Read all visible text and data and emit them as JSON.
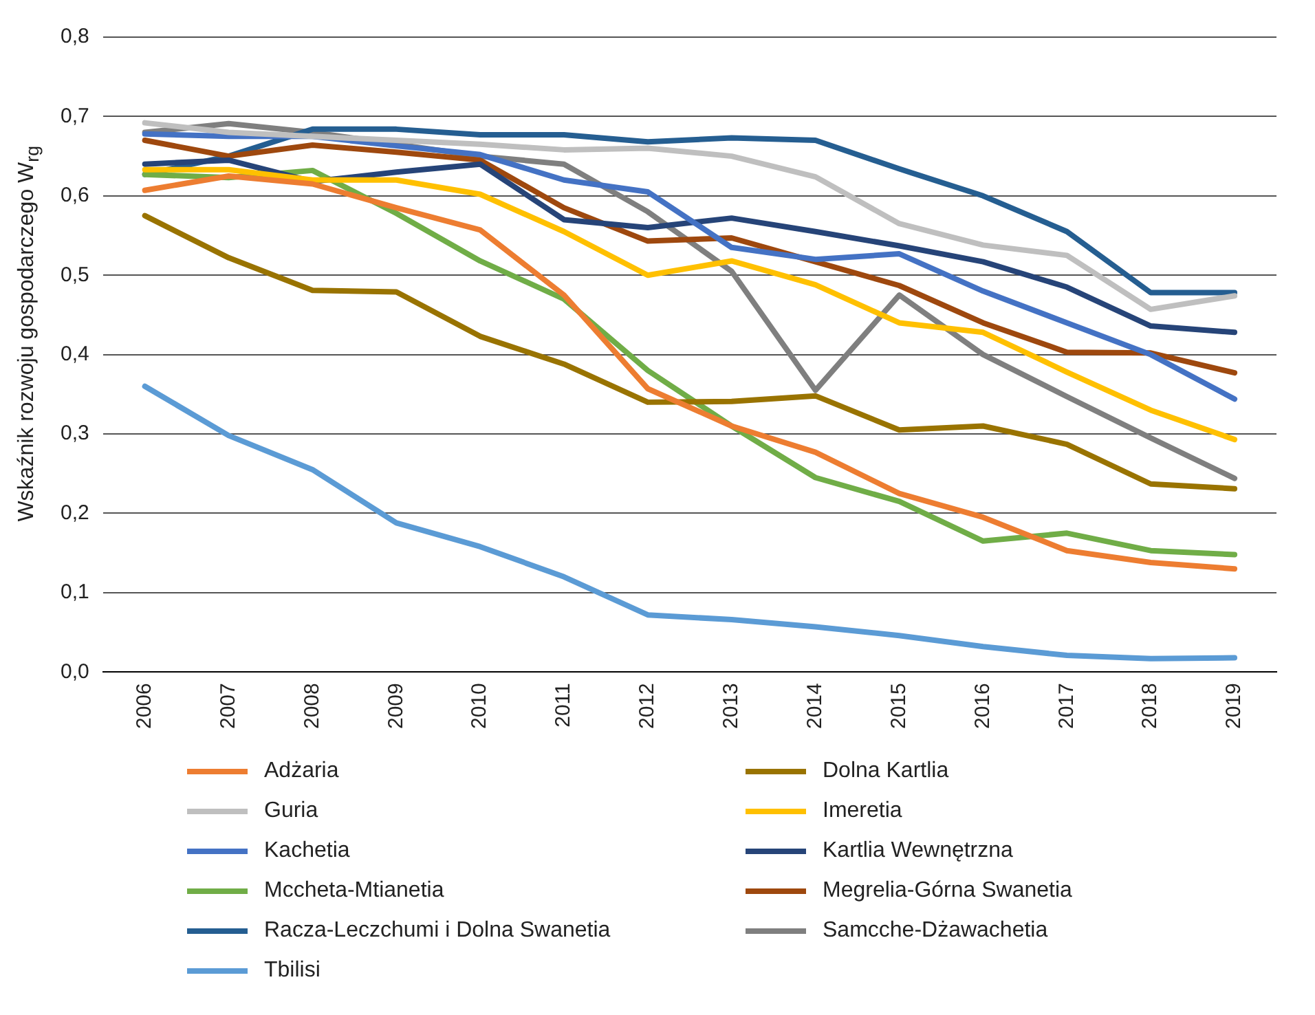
{
  "chart_data": {
    "type": "line",
    "ylabel": "Wskaźnik rozwoju gospodarczego W$_{rg}$",
    "categories": [
      "2006",
      "2007",
      "2008",
      "2009",
      "2010",
      "2011",
      "2012",
      "2013",
      "2014",
      "2015",
      "2016",
      "2017",
      "2018",
      "2019"
    ],
    "ylim": [
      0,
      0.8
    ],
    "yticks": [
      {
        "value": 0,
        "label": "0,0"
      },
      {
        "value": 0.1,
        "label": "0,1"
      },
      {
        "value": 0.2,
        "label": "0,2"
      },
      {
        "value": 0.3,
        "label": "0,3"
      },
      {
        "value": 0.4,
        "label": "0,4"
      },
      {
        "value": 0.5,
        "label": "0,5"
      },
      {
        "value": 0.6,
        "label": "0,6"
      },
      {
        "value": 0.7,
        "label": "0,7"
      },
      {
        "value": 0.8,
        "label": "0,8"
      }
    ],
    "grid": "y",
    "legend": "bottom",
    "marker": "none",
    "line_style": "solid",
    "series": [
      {
        "name": "Adżaria",
        "color": "#ed7d31",
        "values": [
          0.607,
          0.625,
          0.615,
          0.585,
          0.557,
          0.475,
          0.357,
          0.31,
          0.277,
          0.225,
          0.195,
          0.153,
          0.138,
          0.13
        ]
      },
      {
        "name": "Dolna Kartlia",
        "color": "#997300",
        "values": [
          0.575,
          0.522,
          0.481,
          0.479,
          0.423,
          0.388,
          0.34,
          0.341,
          0.348,
          0.305,
          0.31,
          0.287,
          0.237,
          0.231
        ]
      },
      {
        "name": "Guria",
        "color": "#bfbfbf",
        "values": [
          0.692,
          0.68,
          0.675,
          0.67,
          0.665,
          0.658,
          0.66,
          0.65,
          0.624,
          0.565,
          0.538,
          0.525,
          0.457,
          0.474
        ]
      },
      {
        "name": "Imeretia",
        "color": "#ffc000",
        "values": [
          0.633,
          0.633,
          0.62,
          0.62,
          0.602,
          0.555,
          0.5,
          0.518,
          0.488,
          0.44,
          0.428,
          0.378,
          0.33,
          0.293
        ]
      },
      {
        "name": "Kachetia",
        "color": "#4472c4",
        "values": [
          0.678,
          0.675,
          0.675,
          0.663,
          0.652,
          0.62,
          0.605,
          0.535,
          0.52,
          0.527,
          0.48,
          0.44,
          0.4,
          0.344
        ]
      },
      {
        "name": "Kartlia Wewnętrzna",
        "color": "#264478",
        "values": [
          0.64,
          0.645,
          0.618,
          0.63,
          0.64,
          0.57,
          0.56,
          0.572,
          0.555,
          0.537,
          0.517,
          0.485,
          0.436,
          0.428
        ]
      },
      {
        "name": "Mccheta-Mtianetia",
        "color": "#70ad47",
        "values": [
          0.627,
          0.623,
          0.632,
          0.578,
          0.518,
          0.47,
          0.38,
          0.31,
          0.245,
          0.215,
          0.165,
          0.175,
          0.153,
          0.148
        ]
      },
      {
        "name": "Megrelia-Górna Swanetia",
        "color": "#9e480e",
        "values": [
          0.67,
          0.65,
          0.664,
          0.655,
          0.645,
          0.585,
          0.543,
          0.547,
          0.517,
          0.487,
          0.44,
          0.403,
          0.402,
          0.377
        ]
      },
      {
        "name": "Racza-Leczchumi i Dolna Swanetia",
        "color": "#255e91",
        "values": [
          0.627,
          0.65,
          0.684,
          0.684,
          0.677,
          0.677,
          0.668,
          0.673,
          0.67,
          0.634,
          0.6,
          0.555,
          0.478,
          0.478
        ]
      },
      {
        "name": "Samcche-Dżawachetia",
        "color": "#7f7f7f",
        "values": [
          0.68,
          0.691,
          0.68,
          0.665,
          0.65,
          0.64,
          0.58,
          0.505,
          0.355,
          0.475,
          0.4,
          0.347,
          0.295,
          0.244
        ]
      },
      {
        "name": "Tbilisi",
        "color": "#5b9bd5",
        "values": [
          0.36,
          0.298,
          0.255,
          0.188,
          0.158,
          0.12,
          0.072,
          0.066,
          0.057,
          0.046,
          0.032,
          0.021,
          0.017,
          0.018
        ]
      }
    ]
  }
}
